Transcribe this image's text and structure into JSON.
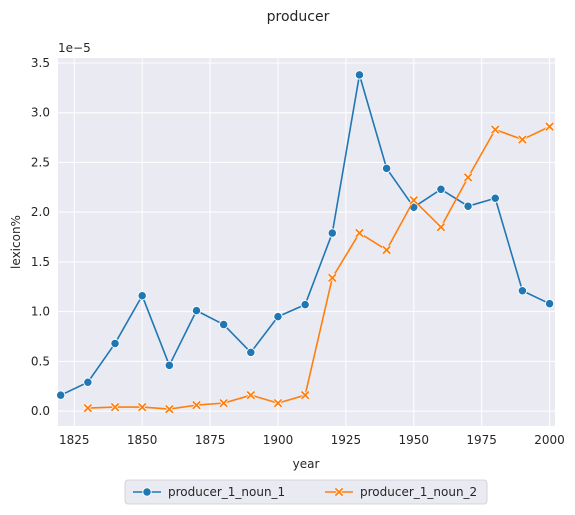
{
  "chart_data": {
    "type": "line",
    "title": "producer",
    "xlabel": "year",
    "ylabel": "lexicon%",
    "y_multiplier_label": "1e−5",
    "xlim": [
      1819,
      2002
    ],
    "ylim": [
      -0.15,
      3.55
    ],
    "x_ticks": [
      1825,
      1850,
      1875,
      1900,
      1925,
      1950,
      1975,
      2000
    ],
    "y_ticks": [
      0.0,
      0.5,
      1.0,
      1.5,
      2.0,
      2.5,
      3.0,
      3.5
    ],
    "y_tick_labels": [
      "0.0",
      "0.5",
      "1.0",
      "1.5",
      "2.0",
      "2.5",
      "3.0",
      "3.5"
    ],
    "grid": true,
    "legend_position": "bottom-center",
    "background": "#eaeaf2",
    "series": [
      {
        "name": "producer_1_noun_1",
        "color": "#1f77b4",
        "marker": "circle",
        "x": [
          1820,
          1830,
          1840,
          1850,
          1860,
          1870,
          1880,
          1890,
          1900,
          1910,
          1920,
          1930,
          1940,
          1950,
          1960,
          1970,
          1980,
          1990,
          2000
        ],
        "y": [
          0.16,
          0.29,
          0.68,
          1.16,
          0.46,
          1.01,
          0.87,
          0.59,
          0.95,
          1.07,
          1.79,
          3.38,
          2.44,
          2.05,
          2.23,
          2.06,
          2.14,
          1.21,
          1.08
        ]
      },
      {
        "name": "producer_1_noun_2",
        "color": "#ff7f0e",
        "marker": "x",
        "x": [
          1830,
          1840,
          1850,
          1860,
          1870,
          1880,
          1890,
          1900,
          1910,
          1920,
          1930,
          1940,
          1950,
          1960,
          1970,
          1980,
          1990,
          2000
        ],
        "y": [
          0.03,
          0.04,
          0.04,
          0.02,
          0.06,
          0.08,
          0.16,
          0.08,
          0.16,
          1.34,
          1.79,
          1.62,
          2.12,
          1.85,
          2.35,
          2.83,
          2.73,
          2.86
        ]
      }
    ]
  }
}
